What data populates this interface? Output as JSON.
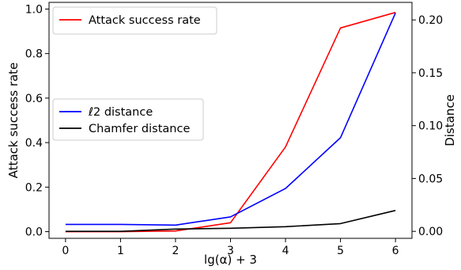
{
  "chart_data": {
    "type": "line",
    "x": [
      0,
      1,
      2,
      3,
      4,
      5,
      6
    ],
    "xlabel": "lg(α) + 3",
    "xticks": [
      "0",
      "1",
      "2",
      "3",
      "4",
      "5",
      "6"
    ],
    "xlim": [
      -0.3,
      6.3
    ],
    "left_axis": {
      "label": "Attack success rate",
      "ylim": [
        -0.03,
        1.03
      ],
      "ticks": [
        "0.0",
        "0.2",
        "0.4",
        "0.6",
        "0.8",
        "1.0"
      ]
    },
    "right_axis": {
      "label": "Distance",
      "ylim": [
        -0.0066,
        0.2166
      ],
      "ticks": [
        "0.00",
        "0.05",
        "0.10",
        "0.15",
        "0.20"
      ]
    },
    "series": [
      {
        "name": "Attack success rate",
        "axis": "left",
        "color": "#ff0000",
        "values": [
          0.0,
          0.0,
          0.003,
          0.04,
          0.38,
          0.915,
          0.985
        ]
      },
      {
        "name": "ℓ2 distance",
        "axis": "right",
        "color": "#0000ff",
        "values": [
          0.0066,
          0.0066,
          0.0059,
          0.0137,
          0.0405,
          0.0886,
          0.2066
        ]
      },
      {
        "name": "Chamfer distance",
        "axis": "right",
        "color": "#000000",
        "values": [
          0.0,
          0.0,
          0.0022,
          0.0029,
          0.0044,
          0.0073,
          0.0198
        ]
      }
    ],
    "legends": [
      {
        "position": "upper-left",
        "entries": [
          "Attack success rate"
        ]
      },
      {
        "position": "center-left",
        "entries": [
          "ℓ2 distance",
          "Chamfer distance"
        ]
      }
    ],
    "grid": false
  }
}
